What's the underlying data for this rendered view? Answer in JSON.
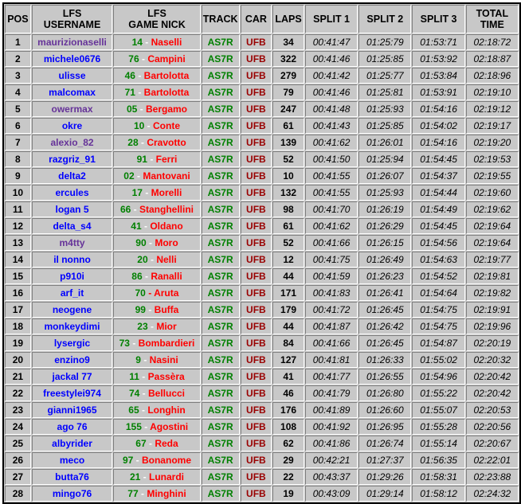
{
  "headers": {
    "pos": "POS",
    "user1": "LFS",
    "user2": "USERNAME",
    "nick1": "LFS",
    "nick2": "GAME NICK",
    "track": "TRACK",
    "car": "CAR",
    "laps": "LAPS",
    "s1": "SPLIT 1",
    "s2": "SPLIT 2",
    "s3": "SPLIT 3",
    "tot1": "TOTAL",
    "tot2": "TIME"
  },
  "colors": {
    "username_blue": "#0000ff",
    "username_purple": "#663399",
    "number": "#008000",
    "name": "#ff0000",
    "track": "#008000",
    "car": "#990000",
    "background": "#c8c8c8"
  },
  "rows": [
    {
      "pos": "1",
      "user": "maurizionaselli",
      "ucolor": "purple",
      "num": "14",
      "sep": "-",
      "name": "Naselli",
      "track": "AS7R",
      "car": "UFB",
      "laps": "34",
      "s1": "00:41:47",
      "s2": "01:25:79",
      "s3": "01:53:71",
      "total": "02:18:72"
    },
    {
      "pos": "2",
      "user": "michele0676",
      "ucolor": "blue",
      "num": "76",
      "sep": "-",
      "name": "Campini",
      "track": "AS7R",
      "car": "UFB",
      "laps": "322",
      "s1": "00:41:46",
      "s2": "01:25:85",
      "s3": "01:53:92",
      "total": "02:18:87"
    },
    {
      "pos": "3",
      "user": "ulisse",
      "ucolor": "blue",
      "num": "46",
      "sep": "-",
      "name": "Bartolotta",
      "track": "AS7R",
      "car": "UFB",
      "laps": "279",
      "s1": "00:41:42",
      "s2": "01:25:77",
      "s3": "01:53:84",
      "total": "02:18:96"
    },
    {
      "pos": "4",
      "user": "malcomax",
      "ucolor": "blue",
      "num": "71",
      "sep": "-",
      "name": "Bartolotta",
      "track": "AS7R",
      "car": "UFB",
      "laps": "79",
      "s1": "00:41:46",
      "s2": "01:25:81",
      "s3": "01:53:91",
      "total": "02:19:10"
    },
    {
      "pos": "5",
      "user": "owermax",
      "ucolor": "purple",
      "num": "05",
      "sep": "-",
      "name": "Bergamo",
      "track": "AS7R",
      "car": "UFB",
      "laps": "247",
      "s1": "00:41:48",
      "s2": "01:25:93",
      "s3": "01:54:16",
      "total": "02:19:12"
    },
    {
      "pos": "6",
      "user": "okre",
      "ucolor": "blue",
      "num": "10",
      "sep": "-",
      "name": "Conte",
      "track": "AS7R",
      "car": "UFB",
      "laps": "61",
      "s1": "00:41:43",
      "s2": "01:25:85",
      "s3": "01:54:02",
      "total": "02:19:17"
    },
    {
      "pos": "7",
      "user": "alexio_82",
      "ucolor": "purple",
      "num": "28",
      "sep": "-",
      "name": "Cravotto",
      "track": "AS7R",
      "car": "UFB",
      "laps": "139",
      "s1": "00:41:62",
      "s2": "01:26:01",
      "s3": "01:54:16",
      "total": "02:19:20"
    },
    {
      "pos": "8",
      "user": "razgriz_91",
      "ucolor": "blue",
      "num": "91",
      "sep": "-",
      "name": "Ferri",
      "track": "AS7R",
      "car": "UFB",
      "laps": "52",
      "s1": "00:41:50",
      "s2": "01:25:94",
      "s3": "01:54:45",
      "total": "02:19:53"
    },
    {
      "pos": "9",
      "user": "delta2",
      "ucolor": "blue",
      "num": "02",
      "sep": "-",
      "name": "Mantovani",
      "track": "AS7R",
      "car": "UFB",
      "laps": "10",
      "s1": "00:41:55",
      "s2": "01:26:07",
      "s3": "01:54:37",
      "total": "02:19:55"
    },
    {
      "pos": "10",
      "user": "ercules",
      "ucolor": "blue",
      "num": "17",
      "sep": "-",
      "name": "Morelli",
      "track": "AS7R",
      "car": "UFB",
      "laps": "132",
      "s1": "00:41:55",
      "s2": "01:25:93",
      "s3": "01:54:44",
      "total": "02:19:60"
    },
    {
      "pos": "11",
      "user": "logan 5",
      "ucolor": "blue",
      "num": "66",
      "sep": "-",
      "name": "Stanghellini",
      "track": "AS7R",
      "car": "UFB",
      "laps": "98",
      "s1": "00:41:70",
      "s2": "01:26:19",
      "s3": "01:54:49",
      "total": "02:19:62"
    },
    {
      "pos": "12",
      "user": "delta_s4",
      "ucolor": "blue",
      "num": "41",
      "sep": "-",
      "name": "Oldano",
      "track": "AS7R",
      "car": "UFB",
      "laps": "61",
      "s1": "00:41:62",
      "s2": "01:26:29",
      "s3": "01:54:45",
      "total": "02:19:64"
    },
    {
      "pos": "13",
      "user": "m4tty",
      "ucolor": "purple",
      "num": "90",
      "sep": "-",
      "name": "Moro",
      "track": "AS7R",
      "car": "UFB",
      "laps": "52",
      "s1": "00:41:66",
      "s2": "01:26:15",
      "s3": "01:54:56",
      "total": "02:19:64"
    },
    {
      "pos": "14",
      "user": "il nonno",
      "ucolor": "blue",
      "num": "20",
      "sep": "-",
      "name": "Nelli",
      "track": "AS7R",
      "car": "UFB",
      "laps": "12",
      "s1": "00:41:75",
      "s2": "01:26:49",
      "s3": "01:54:63",
      "total": "02:19:77"
    },
    {
      "pos": "15",
      "user": "p910i",
      "ucolor": "blue",
      "num": "86",
      "sep": "-",
      "name": "Ranalli",
      "track": "AS7R",
      "car": "UFB",
      "laps": "44",
      "s1": "00:41:59",
      "s2": "01:26:23",
      "s3": "01:54:52",
      "total": "02:19:81"
    },
    {
      "pos": "16",
      "user": "arf_it",
      "ucolor": "blue",
      "num": "70",
      "sep": "-",
      "sepred": true,
      "name": "Aruta",
      "track": "AS7R",
      "car": "UFB",
      "laps": "171",
      "s1": "00:41:83",
      "s2": "01:26:41",
      "s3": "01:54:64",
      "total": "02:19:82"
    },
    {
      "pos": "17",
      "user": "neogene",
      "ucolor": "blue",
      "num": "99",
      "sep": "-",
      "name": "Buffa",
      "track": "AS7R",
      "car": "UFB",
      "laps": "179",
      "s1": "00:41:72",
      "s2": "01:26:45",
      "s3": "01:54:75",
      "total": "02:19:91"
    },
    {
      "pos": "18",
      "user": "monkeydimi",
      "ucolor": "blue",
      "num": "23",
      "sep": "-",
      "name": "Mior",
      "track": "AS7R",
      "car": "UFB",
      "laps": "44",
      "s1": "00:41:87",
      "s2": "01:26:42",
      "s3": "01:54:75",
      "total": "02:19:96"
    },
    {
      "pos": "19",
      "user": "lysergic",
      "ucolor": "blue",
      "num": "73",
      "sep": "-",
      "name": "Bombardieri",
      "track": "AS7R",
      "car": "UFB",
      "laps": "84",
      "s1": "00:41:66",
      "s2": "01:26:45",
      "s3": "01:54:87",
      "total": "02:20:19"
    },
    {
      "pos": "20",
      "user": "enzino9",
      "ucolor": "blue",
      "num": "9",
      "sep": "-",
      "name": "Nasini",
      "track": "AS7R",
      "car": "UFB",
      "laps": "127",
      "s1": "00:41:81",
      "s2": "01:26:33",
      "s3": "01:55:02",
      "total": "02:20:32"
    },
    {
      "pos": "21",
      "user": "jackal 77",
      "ucolor": "blue",
      "num": "11",
      "sep": "-",
      "name": "Passèra",
      "track": "AS7R",
      "car": "UFB",
      "laps": "41",
      "s1": "00:41:77",
      "s2": "01:26:55",
      "s3": "01:54:96",
      "total": "02:20:42"
    },
    {
      "pos": "22",
      "user": "freestylei974",
      "ucolor": "blue",
      "num": "74",
      "sep": "-",
      "name": "Bellucci",
      "track": "AS7R",
      "car": "UFB",
      "laps": "46",
      "s1": "00:41:79",
      "s2": "01:26:80",
      "s3": "01:55:22",
      "total": "02:20:42"
    },
    {
      "pos": "23",
      "user": "gianni1965",
      "ucolor": "blue",
      "num": "65",
      "sep": "-",
      "name": "Longhin",
      "track": "AS7R",
      "car": "UFB",
      "laps": "176",
      "s1": "00:41:89",
      "s2": "01:26:60",
      "s3": "01:55:07",
      "total": "02:20:53"
    },
    {
      "pos": "24",
      "user": "ago 76",
      "ucolor": "blue",
      "num": "155",
      "sep": "-",
      "name": "Agostini",
      "track": "AS7R",
      "car": "UFB",
      "laps": "108",
      "s1": "00:41:92",
      "s2": "01:26:95",
      "s3": "01:55:28",
      "total": "02:20:56"
    },
    {
      "pos": "25",
      "user": "albyrider",
      "ucolor": "blue",
      "num": "67",
      "sep": "-",
      "name": "Reda",
      "track": "AS7R",
      "car": "UFB",
      "laps": "62",
      "s1": "00:41:86",
      "s2": "01:26:74",
      "s3": "01:55:14",
      "total": "02:20:67"
    },
    {
      "pos": "26",
      "user": "meco",
      "ucolor": "blue",
      "num": "97",
      "sep": "-",
      "name": "Bonanome",
      "track": "AS7R",
      "car": "UFB",
      "laps": "29",
      "s1": "00:42:21",
      "s2": "01:27:37",
      "s3": "01:56:35",
      "total": "02:22:01"
    },
    {
      "pos": "27",
      "user": "butta76",
      "ucolor": "blue",
      "num": "21",
      "sep": "-",
      "name": "Lunardi",
      "track": "AS7R",
      "car": "UFB",
      "laps": "22",
      "s1": "00:43:37",
      "s2": "01:29:26",
      "s3": "01:58:31",
      "total": "02:23:88"
    },
    {
      "pos": "28",
      "user": "mingo76",
      "ucolor": "blue",
      "num": "77",
      "sep": "-",
      "name": "Minghini",
      "track": "AS7R",
      "car": "UFB",
      "laps": "19",
      "s1": "00:43:09",
      "s2": "01:29:14",
      "s3": "01:58:12",
      "total": "02:24:32"
    }
  ]
}
